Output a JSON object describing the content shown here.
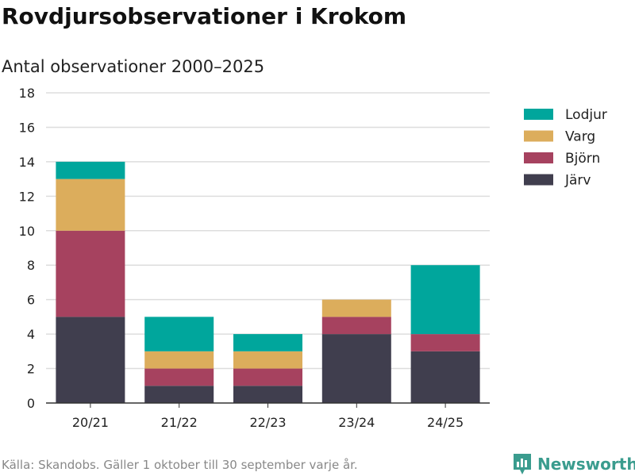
{
  "title": "Rovdjursobservationer i Krokom",
  "subtitle": "Antal observationer 2000–2025",
  "source": "Källa: Skandobs. Gäller 1 oktober till 30 september varje år.",
  "brand": "Newsworthy",
  "chart_data": {
    "type": "bar",
    "stacked": true,
    "categories": [
      "20/21",
      "21/22",
      "22/23",
      "23/24",
      "24/25"
    ],
    "series": [
      {
        "name": "Järv",
        "color": "#403e4e",
        "values": [
          5,
          1,
          1,
          4,
          3
        ]
      },
      {
        "name": "Björn",
        "color": "#a6425f",
        "values": [
          5,
          1,
          1,
          1,
          1
        ]
      },
      {
        "name": "Varg",
        "color": "#dcad5c",
        "values": [
          3,
          1,
          1,
          1,
          0
        ]
      },
      {
        "name": "Lodjur",
        "color": "#00a69c",
        "values": [
          1,
          2,
          1,
          0,
          4
        ]
      }
    ],
    "legend_order": [
      "Lodjur",
      "Varg",
      "Björn",
      "Järv"
    ],
    "legend_position": "right",
    "ylim": [
      0,
      18
    ],
    "yticks": [
      0,
      2,
      4,
      6,
      8,
      10,
      12,
      14,
      16,
      18
    ],
    "grid": true,
    "xlabel": "",
    "ylabel": ""
  }
}
